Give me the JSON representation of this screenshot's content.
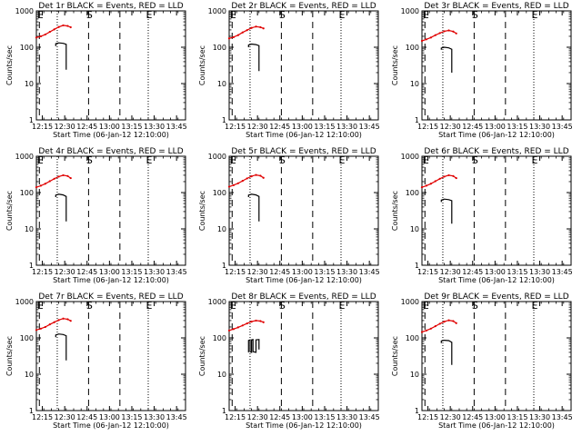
{
  "figure": {
    "xlabel": "Start Time (06-Jan-12 12:10:00)",
    "ylabel": "Counts/sec"
  },
  "chart_data": [
    {
      "type": "line",
      "title": "Det 1r BLACK = Events, RED = LLD",
      "xlabel": "Start Time (06-Jan-12 12:10:00)",
      "ylabel": "Counts/sec",
      "xlim": [
        "12:11",
        "13:51"
      ],
      "ylim": [
        1,
        1000
      ],
      "yscale": "log",
      "grid": false,
      "x_ticks": [
        "12:15",
        "12:30",
        "12:45",
        "13:00",
        "13:15",
        "13:30",
        "13:45"
      ],
      "y_ticks": [
        "1",
        "10",
        "100",
        "1000"
      ],
      "annotations": [
        {
          "label": "E",
          "time": "12:13",
          "line": "dashed"
        },
        {
          "label": "",
          "time": "12:25",
          "line": "dotted"
        },
        {
          "label": "S",
          "time": "12:46",
          "line": "dashed"
        },
        {
          "label": "",
          "time": "13:07",
          "line": "dashed"
        },
        {
          "label": "E",
          "time": "13:26",
          "line": "dotted"
        }
      ],
      "series": [
        {
          "name": "LLD",
          "color": "#e00000",
          "x": [
            "12:11",
            "12:14",
            "12:17",
            "12:20",
            "12:23",
            "12:26",
            "12:29",
            "12:32",
            "12:34"
          ],
          "values": [
            185,
            200,
            225,
            265,
            310,
            360,
            400,
            385,
            355
          ]
        },
        {
          "name": "Events",
          "color": "#000000",
          "x": [
            "12:24",
            "12:24",
            "12:26",
            "12:29",
            "12:31",
            "12:31"
          ],
          "values": [
            108,
            125,
            132,
            128,
            120,
            24
          ]
        }
      ]
    },
    {
      "type": "line",
      "title": "Det 2r BLACK = Events, RED = LLD",
      "xlabel": "Start Time (06-Jan-12 12:10:00)",
      "ylabel": "Counts/sec",
      "xlim": [
        "12:11",
        "13:51"
      ],
      "ylim": [
        1,
        1000
      ],
      "yscale": "log",
      "grid": false,
      "x_ticks": [
        "12:15",
        "12:30",
        "12:45",
        "13:00",
        "13:15",
        "13:30",
        "13:45"
      ],
      "y_ticks": [
        "1",
        "10",
        "100",
        "1000"
      ],
      "annotations": [
        {
          "label": "E",
          "time": "12:13",
          "line": "dashed"
        },
        {
          "label": "",
          "time": "12:25",
          "line": "dotted"
        },
        {
          "label": "S",
          "time": "12:46",
          "line": "dashed"
        },
        {
          "label": "",
          "time": "13:07",
          "line": "dashed"
        },
        {
          "label": "E",
          "time": "13:26",
          "line": "dotted"
        }
      ],
      "series": [
        {
          "name": "LLD",
          "color": "#e00000",
          "x": [
            "12:11",
            "12:14",
            "12:17",
            "12:20",
            "12:23",
            "12:26",
            "12:29",
            "12:32",
            "12:34"
          ],
          "values": [
            175,
            190,
            215,
            255,
            295,
            340,
            370,
            355,
            330
          ]
        },
        {
          "name": "Events",
          "color": "#000000",
          "x": [
            "12:24",
            "12:24",
            "12:26",
            "12:29",
            "12:31",
            "12:31"
          ],
          "values": [
            100,
            115,
            122,
            118,
            110,
            22
          ]
        }
      ]
    },
    {
      "type": "line",
      "title": "Det 3r BLACK = Events, RED = LLD",
      "xlabel": "Start Time (06-Jan-12 12:10:00)",
      "ylabel": "Counts/sec",
      "xlim": [
        "12:11",
        "13:51"
      ],
      "ylim": [
        1,
        1000
      ],
      "yscale": "log",
      "grid": false,
      "x_ticks": [
        "12:15",
        "12:30",
        "12:45",
        "13:00",
        "13:15",
        "13:30",
        "13:45"
      ],
      "y_ticks": [
        "1",
        "10",
        "100",
        "1000"
      ],
      "annotations": [
        {
          "label": "E",
          "time": "12:13",
          "line": "dashed"
        },
        {
          "label": "",
          "time": "12:25",
          "line": "dotted"
        },
        {
          "label": "S",
          "time": "12:46",
          "line": "dashed"
        },
        {
          "label": "",
          "time": "13:07",
          "line": "dashed"
        },
        {
          "label": "E",
          "time": "13:26",
          "line": "dotted"
        }
      ],
      "series": [
        {
          "name": "LLD",
          "color": "#e00000",
          "x": [
            "12:11",
            "12:14",
            "12:17",
            "12:20",
            "12:23",
            "12:26",
            "12:29",
            "12:32",
            "12:34"
          ],
          "values": [
            150,
            165,
            185,
            215,
            245,
            275,
            290,
            270,
            240
          ]
        },
        {
          "name": "Events",
          "color": "#000000",
          "x": [
            "12:24",
            "12:24",
            "12:26",
            "12:29",
            "12:31",
            "12:31"
          ],
          "values": [
            85,
            95,
            100,
            96,
            88,
            20
          ]
        }
      ]
    },
    {
      "type": "line",
      "title": "Det 4r BLACK = Events, RED = LLD",
      "xlabel": "Start Time (06-Jan-12 12:10:00)",
      "ylabel": "Counts/sec",
      "xlim": [
        "12:11",
        "13:51"
      ],
      "ylim": [
        1,
        1000
      ],
      "yscale": "log",
      "grid": false,
      "x_ticks": [
        "12:15",
        "12:30",
        "12:45",
        "13:00",
        "13:15",
        "13:30",
        "13:45"
      ],
      "y_ticks": [
        "1",
        "10",
        "100",
        "1000"
      ],
      "annotations": [
        {
          "label": "E",
          "time": "12:13",
          "line": "dashed"
        },
        {
          "label": "",
          "time": "12:25",
          "line": "dotted"
        },
        {
          "label": "S",
          "time": "12:46",
          "line": "dashed"
        },
        {
          "label": "",
          "time": "13:07",
          "line": "dashed"
        },
        {
          "label": "E",
          "time": "13:26",
          "line": "dotted"
        }
      ],
      "series": [
        {
          "name": "LLD",
          "color": "#e00000",
          "x": [
            "12:11",
            "12:14",
            "12:17",
            "12:20",
            "12:23",
            "12:26",
            "12:29",
            "12:32",
            "12:34"
          ],
          "values": [
            140,
            155,
            175,
            205,
            240,
            275,
            300,
            285,
            250
          ]
        },
        {
          "name": "Events",
          "color": "#000000",
          "x": [
            "12:24",
            "12:24",
            "12:26",
            "12:29",
            "12:31",
            "12:31"
          ],
          "values": [
            75,
            85,
            90,
            86,
            78,
            16
          ]
        }
      ]
    },
    {
      "type": "line",
      "title": "Det 5r BLACK = Events, RED = LLD",
      "xlabel": "Start Time (06-Jan-12 12:10:00)",
      "ylabel": "Counts/sec",
      "xlim": [
        "12:11",
        "13:51"
      ],
      "ylim": [
        1,
        1000
      ],
      "yscale": "log",
      "grid": false,
      "x_ticks": [
        "12:15",
        "12:30",
        "12:45",
        "13:00",
        "13:15",
        "13:30",
        "13:45"
      ],
      "y_ticks": [
        "1",
        "10",
        "100",
        "1000"
      ],
      "annotations": [
        {
          "label": "E",
          "time": "12:13",
          "line": "dashed"
        },
        {
          "label": "",
          "time": "12:25",
          "line": "dotted"
        },
        {
          "label": "S",
          "time": "12:46",
          "line": "dashed"
        },
        {
          "label": "",
          "time": "13:07",
          "line": "dashed"
        },
        {
          "label": "E",
          "time": "13:26",
          "line": "dotted"
        }
      ],
      "series": [
        {
          "name": "LLD",
          "color": "#e00000",
          "x": [
            "12:11",
            "12:14",
            "12:17",
            "12:20",
            "12:23",
            "12:26",
            "12:29",
            "12:32",
            "12:34"
          ],
          "values": [
            145,
            160,
            180,
            210,
            245,
            280,
            305,
            290,
            255
          ]
        },
        {
          "name": "Events",
          "color": "#000000",
          "x": [
            "12:24",
            "12:24",
            "12:26",
            "12:29",
            "12:31",
            "12:31"
          ],
          "values": [
            75,
            85,
            90,
            86,
            78,
            16
          ]
        }
      ]
    },
    {
      "type": "line",
      "title": "Det 6r BLACK = Events, RED = LLD",
      "xlabel": "Start Time (06-Jan-12 12:10:00)",
      "ylabel": "Counts/sec",
      "xlim": [
        "12:11",
        "13:51"
      ],
      "ylim": [
        1,
        1000
      ],
      "yscale": "log",
      "grid": false,
      "x_ticks": [
        "12:15",
        "12:30",
        "12:45",
        "13:00",
        "13:15",
        "13:30",
        "13:45"
      ],
      "y_ticks": [
        "1",
        "10",
        "100",
        "1000"
      ],
      "annotations": [
        {
          "label": "E",
          "time": "12:13",
          "line": "dashed"
        },
        {
          "label": "",
          "time": "12:25",
          "line": "dotted"
        },
        {
          "label": "S",
          "time": "12:46",
          "line": "dashed"
        },
        {
          "label": "",
          "time": "13:07",
          "line": "dashed"
        },
        {
          "label": "E",
          "time": "13:26",
          "line": "dotted"
        }
      ],
      "series": [
        {
          "name": "LLD",
          "color": "#e00000",
          "x": [
            "12:11",
            "12:14",
            "12:17",
            "12:20",
            "12:23",
            "12:26",
            "12:29",
            "12:32",
            "12:34"
          ],
          "values": [
            140,
            155,
            175,
            205,
            240,
            275,
            300,
            285,
            250
          ]
        },
        {
          "name": "Events",
          "color": "#000000",
          "x": [
            "12:24",
            "12:24",
            "12:26",
            "12:29",
            "12:31",
            "12:31"
          ],
          "values": [
            55,
            62,
            66,
            64,
            60,
            14
          ]
        }
      ]
    },
    {
      "type": "line",
      "title": "Det 7r BLACK = Events, RED = LLD",
      "xlabel": "Start Time (06-Jan-12 12:10:00)",
      "ylabel": "Counts/sec",
      "xlim": [
        "12:11",
        "13:51"
      ],
      "ylim": [
        1,
        1000
      ],
      "yscale": "log",
      "grid": false,
      "x_ticks": [
        "12:15",
        "12:30",
        "12:45",
        "13:00",
        "13:15",
        "13:30",
        "13:45"
      ],
      "y_ticks": [
        "1",
        "10",
        "100",
        "1000"
      ],
      "annotations": [
        {
          "label": "E",
          "time": "12:13",
          "line": "dashed"
        },
        {
          "label": "",
          "time": "12:25",
          "line": "dotted"
        },
        {
          "label": "S",
          "time": "12:46",
          "line": "dashed"
        },
        {
          "label": "",
          "time": "13:07",
          "line": "dashed"
        },
        {
          "label": "E",
          "time": "13:26",
          "line": "dotted"
        }
      ],
      "series": [
        {
          "name": "LLD",
          "color": "#e00000",
          "x": [
            "12:11",
            "12:14",
            "12:17",
            "12:20",
            "12:23",
            "12:26",
            "12:29",
            "12:32",
            "12:34"
          ],
          "values": [
            165,
            180,
            200,
            235,
            270,
            310,
            340,
            325,
            295
          ]
        },
        {
          "name": "Events",
          "color": "#000000",
          "x": [
            "12:24",
            "12:24",
            "12:26",
            "12:29",
            "12:31",
            "12:31"
          ],
          "values": [
            105,
            120,
            128,
            124,
            115,
            24
          ]
        }
      ]
    },
    {
      "type": "line",
      "title": "Det 8r BLACK = Events, RED = LLD",
      "xlabel": "Start Time (06-Jan-12 12:10:00)",
      "ylabel": "Counts/sec",
      "xlim": [
        "12:11",
        "13:51"
      ],
      "ylim": [
        1,
        1000
      ],
      "yscale": "log",
      "grid": false,
      "x_ticks": [
        "12:15",
        "12:30",
        "12:45",
        "13:00",
        "13:15",
        "13:30",
        "13:45"
      ],
      "y_ticks": [
        "1",
        "10",
        "100",
        "1000"
      ],
      "annotations": [
        {
          "label": "E",
          "time": "12:13",
          "line": "dashed"
        },
        {
          "label": "",
          "time": "12:25",
          "line": "dotted"
        },
        {
          "label": "S",
          "time": "12:46",
          "line": "dashed"
        },
        {
          "label": "",
          "time": "13:07",
          "line": "dashed"
        },
        {
          "label": "E",
          "time": "13:26",
          "line": "dotted"
        }
      ],
      "series": [
        {
          "name": "LLD",
          "color": "#e00000",
          "x": [
            "12:11",
            "12:14",
            "12:17",
            "12:20",
            "12:23",
            "12:26",
            "12:29",
            "12:32",
            "12:34"
          ],
          "values": [
            160,
            175,
            195,
            220,
            250,
            280,
            300,
            290,
            270
          ]
        },
        {
          "name": "Events",
          "color": "#000000",
          "x": [
            "12:24",
            "12:24",
            "12:25",
            "12:25",
            "12:26",
            "12:26",
            "12:27",
            "12:27",
            "12:29",
            "12:29",
            "12:31",
            "12:31"
          ],
          "values": [
            40,
            85,
            88,
            42,
            40,
            88,
            90,
            42,
            40,
            88,
            90,
            48
          ]
        }
      ]
    },
    {
      "type": "line",
      "title": "Det 9r BLACK = Events, RED = LLD",
      "xlabel": "Start Time (06-Jan-12 12:10:00)",
      "ylabel": "Counts/sec",
      "xlim": [
        "12:11",
        "13:51"
      ],
      "ylim": [
        1,
        1000
      ],
      "yscale": "log",
      "grid": false,
      "x_ticks": [
        "12:15",
        "12:30",
        "12:45",
        "13:00",
        "13:15",
        "13:30",
        "13:45"
      ],
      "y_ticks": [
        "1",
        "10",
        "100",
        "1000"
      ],
      "annotations": [
        {
          "label": "E",
          "time": "12:13",
          "line": "dashed"
        },
        {
          "label": "",
          "time": "12:25",
          "line": "dotted"
        },
        {
          "label": "S",
          "time": "12:46",
          "line": "dashed"
        },
        {
          "label": "",
          "time": "13:07",
          "line": "dashed"
        },
        {
          "label": "E",
          "time": "13:26",
          "line": "dotted"
        }
      ],
      "series": [
        {
          "name": "LLD",
          "color": "#e00000",
          "x": [
            "12:11",
            "12:14",
            "12:17",
            "12:20",
            "12:23",
            "12:26",
            "12:29",
            "12:32",
            "12:34"
          ],
          "values": [
            145,
            160,
            180,
            210,
            245,
            280,
            305,
            290,
            255
          ]
        },
        {
          "name": "Events",
          "color": "#000000",
          "x": [
            "12:24",
            "12:24",
            "12:26",
            "12:29",
            "12:31",
            "12:31"
          ],
          "values": [
            72,
            82,
            86,
            84,
            76,
            18
          ]
        }
      ]
    }
  ]
}
